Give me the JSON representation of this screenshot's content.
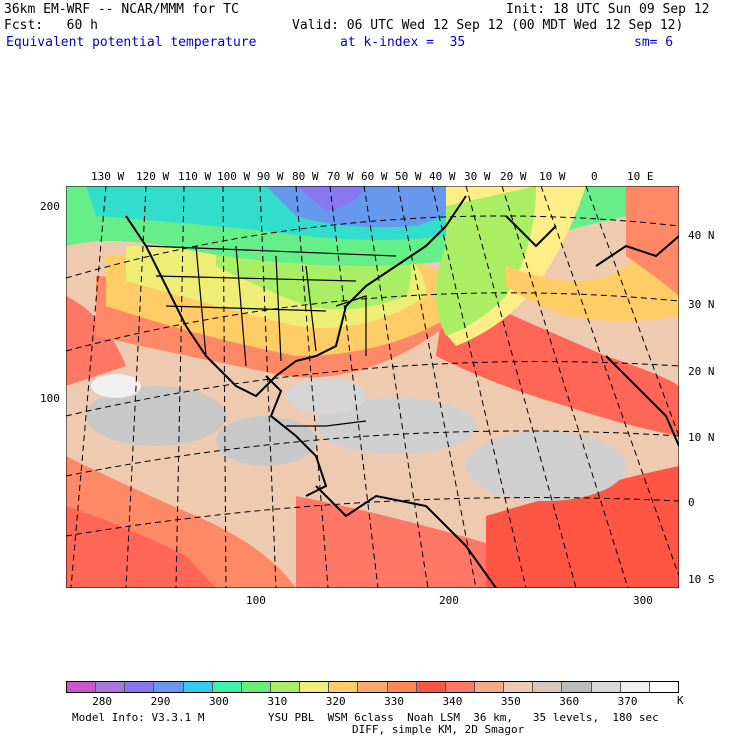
{
  "header": {
    "line1_left": "36km EM-WRF -- NCAR/MMM for TC",
    "line1_right": "Init: 18 UTC Sun 09 Sep 12",
    "line2_left": "Fcst:   60 h",
    "line2_right": "Valid: 06 UTC Wed 12 Sep 12 (00 MDT Wed 12 Sep 12)",
    "line3_field": "Equivalent potential temperature",
    "line3_level": "at k-index =  35",
    "line3_smooth": "sm= 6"
  },
  "map": {
    "top_lon_labels": [
      "130 W",
      "120 W",
      "110 W",
      "100 W",
      "90 W",
      "80 W",
      "70 W",
      "60 W",
      "50 W",
      "40 W",
      "30 W",
      "20 W",
      "10 W",
      "0",
      "10 E"
    ],
    "right_lat_labels": [
      "40 N",
      "30 N",
      "20 N",
      "10 N",
      "0",
      "10 S"
    ],
    "left_grid_labels": [
      "200",
      "100"
    ],
    "bottom_grid_labels": [
      "100",
      "200",
      "300"
    ]
  },
  "colorbar": {
    "colors": [
      "#cc55cc",
      "#aa77dd",
      "#8877ee",
      "#6699ee",
      "#33ccee",
      "#44eeaa",
      "#66ee77",
      "#aaee66",
      "#eeee77",
      "#ffcc66",
      "#ffaa66",
      "#ff8855",
      "#ff5544",
      "#ff7766",
      "#f5aa88",
      "#eecbb0",
      "#d8c8b8",
      "#bbbbbb",
      "#d8d8d8",
      "#f0f0f0",
      "#ffffff"
    ],
    "labels": [
      "280",
      "290",
      "300",
      "310",
      "320",
      "330",
      "340",
      "350",
      "360",
      "370"
    ],
    "unit": "K"
  },
  "footer": {
    "line1_left": "Model Info: V3.3.1 M",
    "line1_right": "YSU PBL  WSM 6class  Noah LSM  36 km,   35 levels,  180 sec",
    "line2": "DIFF, simple KM, 2D Smagor"
  }
}
